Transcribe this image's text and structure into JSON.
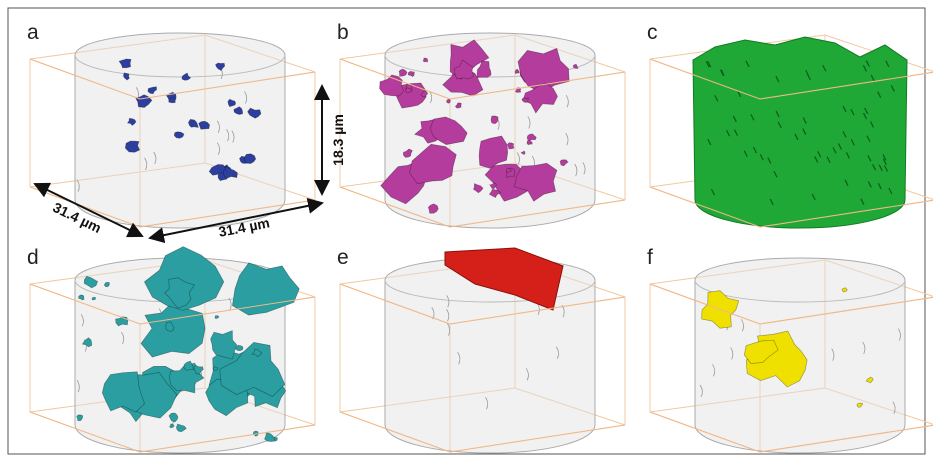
{
  "panels": [
    {
      "label": "a"
    },
    {
      "label": "b"
    },
    {
      "label": "c"
    },
    {
      "label": "d"
    },
    {
      "label": "e"
    },
    {
      "label": "f"
    }
  ],
  "dimensions": {
    "width": "31.4 µm",
    "depth": "31.4 µm",
    "height": "18.3 µm"
  }
}
